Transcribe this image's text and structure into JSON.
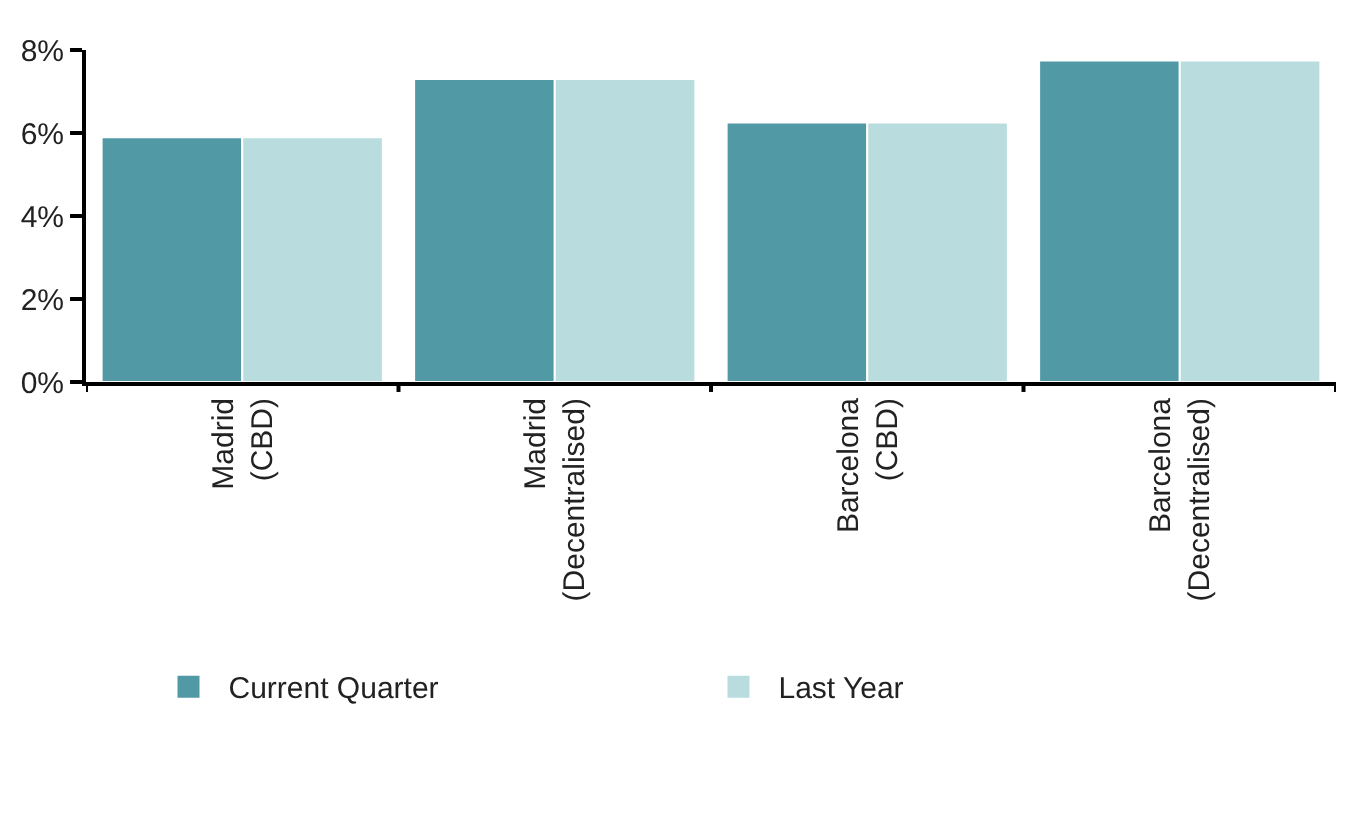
{
  "chart_data": {
    "type": "bar",
    "categories": [
      "Madrid\n(CBD)",
      "Madrid\n(Decentralised)",
      "Barcelona\n(CBD)",
      "Barcelona\n(Decentralised)"
    ],
    "series": [
      {
        "name": "Current Quarter",
        "color": "#5099a5",
        "values": [
          5.9,
          7.3,
          6.25,
          7.75
        ]
      },
      {
        "name": "Last Year",
        "color": "#b9dcdf",
        "values": [
          5.9,
          7.3,
          6.25,
          7.75
        ]
      }
    ],
    "ylim": [
      0,
      8
    ],
    "yticks": [
      {
        "value": 0,
        "label": "0%"
      },
      {
        "value": 2,
        "label": "2%"
      },
      {
        "value": 4,
        "label": "4%"
      },
      {
        "value": 6,
        "label": "6%"
      },
      {
        "value": 8,
        "label": "8%"
      }
    ],
    "legend": "bottom left"
  }
}
